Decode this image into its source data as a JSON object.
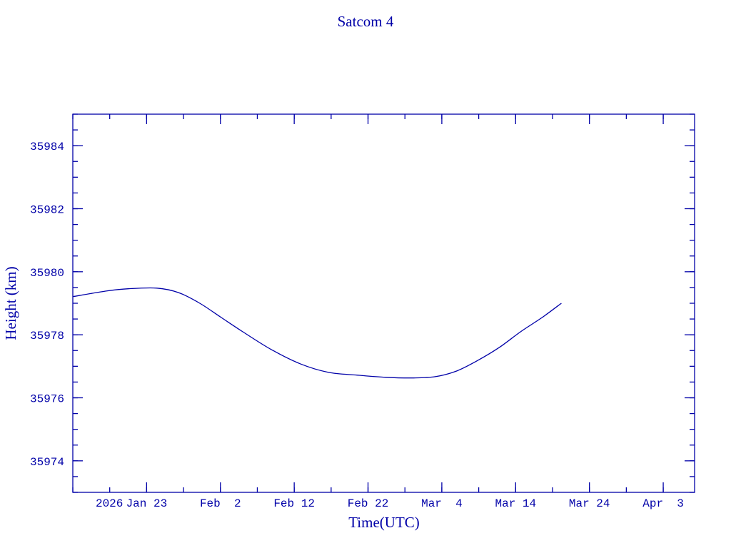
{
  "chart_data": {
    "type": "line",
    "title": "Satcom 4",
    "xlabel": "Time(UTC)",
    "ylabel": "Height (km)",
    "x_units": "days since 2026 Jan 13",
    "xlim": [
      0,
      84.25
    ],
    "ylim": [
      35973,
      35985
    ],
    "x_ticks": [
      {
        "value": 10,
        "label": "Jan 23"
      },
      {
        "value": 20,
        "label": "Feb  2"
      },
      {
        "value": 30,
        "label": "Feb 12"
      },
      {
        "value": 40,
        "label": "Feb 22"
      },
      {
        "value": 50,
        "label": "Mar  4"
      },
      {
        "value": 60,
        "label": "Mar 14"
      },
      {
        "value": 70,
        "label": "Mar 24"
      },
      {
        "value": 80,
        "label": "Apr  3"
      }
    ],
    "x_year_prefix": "2026",
    "x_minor_step": 5,
    "y_ticks": [
      {
        "value": 35974,
        "label": "35974"
      },
      {
        "value": 35976,
        "label": "35976"
      },
      {
        "value": 35978,
        "label": "35978"
      },
      {
        "value": 35980,
        "label": "35980"
      },
      {
        "value": 35982,
        "label": "35982"
      },
      {
        "value": 35984,
        "label": "35984"
      }
    ],
    "y_minor_step": 0.5,
    "grid": false,
    "color": "#0000a8",
    "series": [
      {
        "name": "Satcom 4",
        "x": [
          0,
          4.6,
          7.5,
          11.4,
          14.3,
          17.2,
          20.1,
          23.0,
          26.9,
          30.8,
          34.6,
          38.5,
          42.4,
          46.2,
          49.1,
          52.0,
          54.9,
          57.8,
          60.7,
          63.6,
          66.2
        ],
        "y": [
          35979.21,
          35979.39,
          35979.46,
          35979.48,
          35979.34,
          35979.0,
          35978.55,
          35978.1,
          35977.53,
          35977.08,
          35976.81,
          35976.72,
          35976.65,
          35976.63,
          35976.67,
          35976.85,
          35977.19,
          35977.6,
          35978.1,
          35978.55,
          35979.0
        ]
      }
    ]
  }
}
